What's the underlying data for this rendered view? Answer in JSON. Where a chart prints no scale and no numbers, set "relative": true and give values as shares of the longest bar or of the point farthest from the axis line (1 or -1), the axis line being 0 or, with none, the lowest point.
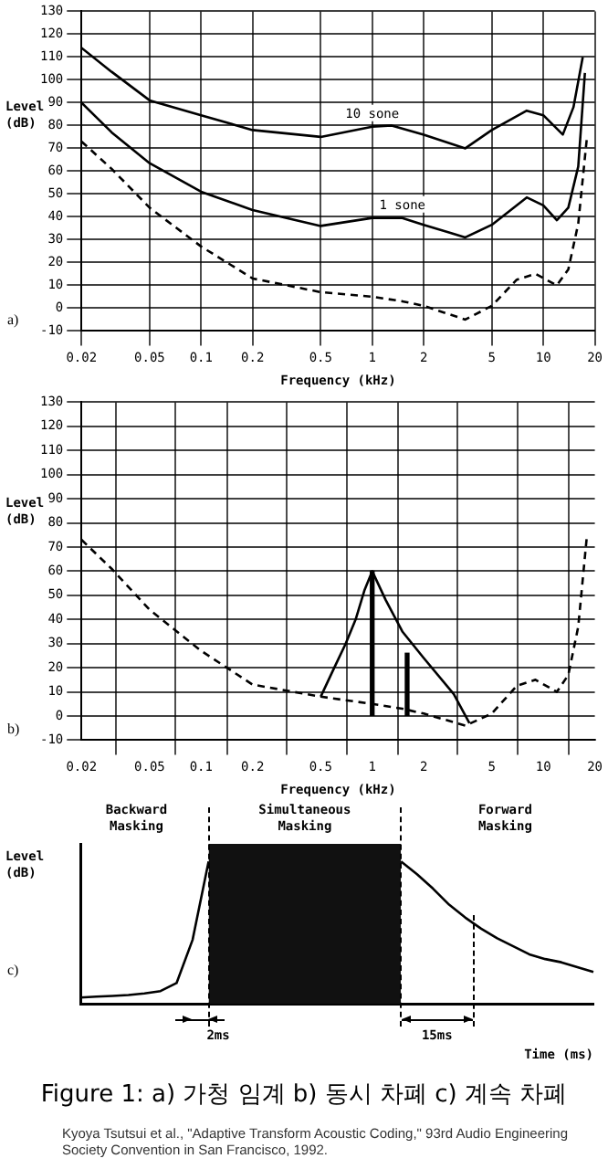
{
  "chart_data": [
    {
      "type": "line",
      "xlabel": "Frequency (kHz)",
      "ylabel": "Level (dB)",
      "log": "x",
      "xlim": [
        0.02,
        20
      ],
      "xticks": [
        0.02,
        0.05,
        0.1,
        0.2,
        0.5,
        1,
        2,
        5,
        10,
        20
      ],
      "ylim": [
        -10,
        130
      ],
      "yticks": [
        -10,
        0,
        10,
        20,
        30,
        40,
        50,
        60,
        70,
        80,
        90,
        100,
        110,
        120,
        130
      ],
      "grid": true,
      "annotations": [
        "a)"
      ],
      "series": [
        {
          "name": "10 sone",
          "color": "#000000",
          "x": [
            0.02,
            0.03,
            0.05,
            0.1,
            0.2,
            0.5,
            1,
            1.3,
            2,
            3.5,
            5,
            8,
            10,
            13,
            15,
            17
          ],
          "values": [
            114,
            103.5,
            91,
            84.5,
            78,
            75,
            79.5,
            80,
            76,
            70,
            78,
            86.5,
            84.5,
            76,
            88,
            110
          ]
        },
        {
          "name": "1 sone",
          "color": "#000000",
          "x": [
            0.02,
            0.03,
            0.05,
            0.1,
            0.2,
            0.5,
            1,
            1.5,
            2,
            3.5,
            5,
            8,
            10,
            12,
            14,
            16,
            17.5
          ],
          "values": [
            90,
            77,
            63.5,
            51,
            43,
            36,
            39.5,
            39.5,
            36.5,
            31,
            36.5,
            48.5,
            45,
            38.5,
            44,
            62,
            103
          ]
        },
        {
          "color": "#000000",
          "line_style": "dashed",
          "x": [
            0.02,
            0.03,
            0.05,
            0.1,
            0.2,
            0.5,
            1,
            1.5,
            2,
            3.5,
            5,
            7,
            9,
            12,
            14,
            16,
            17.5,
            18
          ],
          "values": [
            73,
            61,
            44,
            27,
            13,
            7,
            5,
            3,
            1,
            -5,
            1,
            12.5,
            15,
            10,
            17,
            37,
            66,
            75
          ]
        }
      ]
    },
    {
      "type": "line",
      "xlabel": "Frequency (kHz)",
      "ylabel": "Level (dB)",
      "log": "x",
      "xlim": [
        0.02,
        20
      ],
      "xticks": [
        0.02,
        0.05,
        0.1,
        0.2,
        0.5,
        1,
        2,
        5,
        10,
        20
      ],
      "ylim": [
        -10,
        130
      ],
      "yticks": [
        -10,
        0,
        10,
        20,
        30,
        40,
        50,
        60,
        70,
        80,
        90,
        100,
        110,
        120,
        130
      ],
      "grid": true,
      "annotations": [
        "b)"
      ],
      "series": [
        {
          "color": "#000000",
          "line_style": "dashed",
          "x": [
            0.02,
            0.03,
            0.05,
            0.1,
            0.2,
            0.5,
            1,
            1.5,
            2,
            3.5,
            5,
            7,
            9,
            12,
            14,
            16,
            17.5,
            18
          ],
          "values": [
            73,
            61,
            44,
            27,
            13,
            8,
            5,
            3,
            1,
            -4,
            1,
            12.5,
            15,
            10,
            17,
            37,
            66,
            75
          ]
        },
        {
          "color": "#000000",
          "x": [
            0.5,
            0.6,
            0.7,
            0.8,
            0.9,
            1,
            1.2,
            1.5,
            2,
            3,
            3.7
          ],
          "values": [
            8,
            20,
            30,
            40,
            52,
            60,
            48,
            35,
            24,
            9,
            -3
          ]
        },
        {
          "type": "bar",
          "color": "#000000",
          "x": [
            1,
            1.6
          ],
          "values": [
            60,
            26
          ]
        }
      ]
    },
    {
      "type": "line",
      "relative": true,
      "xlabel": "Time (ms)",
      "ylabel": "Level (dB)",
      "tick_labels": false,
      "categories": [
        null,
        null,
        null,
        null,
        null,
        null,
        null,
        null,
        null,
        null,
        null,
        null,
        null,
        null,
        null,
        null,
        null,
        null,
        null,
        null,
        null,
        null,
        null,
        null,
        null,
        null,
        null,
        null,
        null,
        null,
        null,
        null,
        null
      ],
      "annotations": [
        "Backward Masking",
        "Simultaneous Masking",
        "Forward Masking",
        "2ms",
        "15ms",
        "c)",
        "Figure 1: a) 가청 임계 b) 동시 차폐 c) 계속 차폐",
        "Kyoya Tsutsui et al., \"Adaptive Transform Acoustic Coding,\" 93rd Audio Engineering Society Convention in San Francisco, 1992."
      ],
      "series": [
        {
          "color": "#000000",
          "values": [
            0.04,
            0.045,
            0.05,
            0.055,
            0.065,
            0.08,
            0.13,
            0.4,
            0.89,
            null,
            null,
            null,
            null,
            null,
            null,
            null,
            null,
            null,
            null,
            null,
            0.89,
            0.81,
            0.72,
            0.62,
            0.54,
            0.47,
            0.41,
            0.36,
            0.31,
            0.28,
            0.26,
            0.23,
            0.2
          ]
        },
        {
          "type": "area",
          "color": "#111111",
          "values": [
            null,
            null,
            null,
            null,
            null,
            null,
            null,
            null,
            1,
            1,
            1,
            1,
            1,
            1,
            1,
            1,
            1,
            1,
            1,
            1,
            1,
            null,
            null,
            null,
            null,
            null,
            null,
            null,
            null,
            null,
            null,
            null,
            null
          ]
        }
      ]
    }
  ]
}
